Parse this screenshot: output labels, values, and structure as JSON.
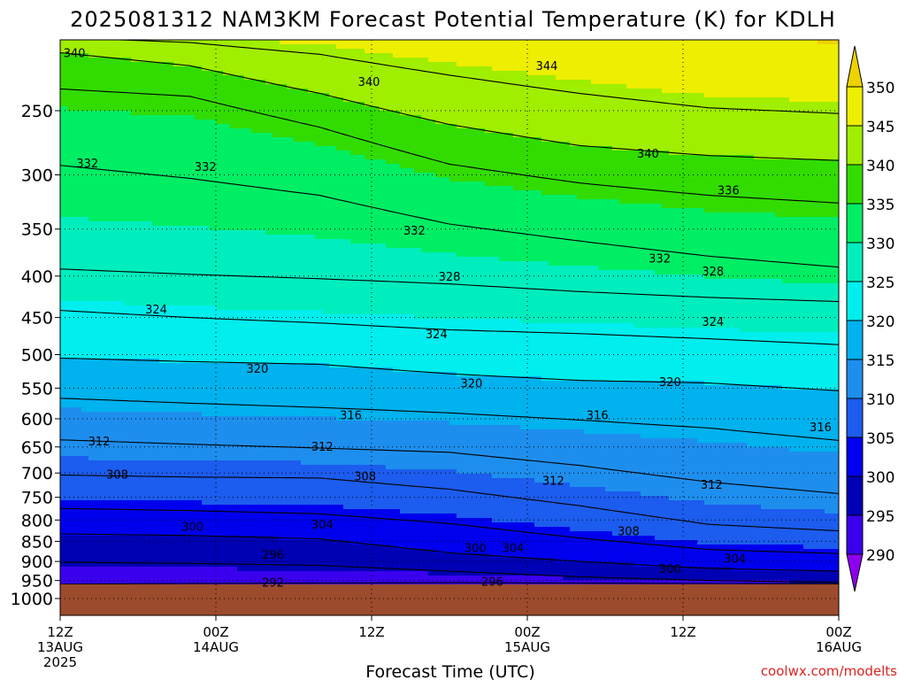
{
  "chart_data": {
    "type": "heatmap",
    "title": "2025081312 NAM3KM Forecast Potential Temperature (K) for KDLH",
    "xlabel": "Forecast Time (UTC)",
    "ylabel": "",
    "credit": "coolwx.com/modelts",
    "x_ticks": [
      {
        "hour": 0,
        "label": "12Z",
        "sub": "13AUG",
        "year": "2025"
      },
      {
        "hour": 12,
        "label": "00Z",
        "sub": "14AUG",
        "year": ""
      },
      {
        "hour": 24,
        "label": "12Z",
        "sub": "",
        "year": ""
      },
      {
        "hour": 36,
        "label": "00Z",
        "sub": "15AUG",
        "year": ""
      },
      {
        "hour": 48,
        "label": "12Z",
        "sub": "",
        "year": ""
      },
      {
        "hour": 60,
        "label": "00Z",
        "sub": "16AUG",
        "year": ""
      }
    ],
    "xlim_hours": [
      0,
      60
    ],
    "y_scale": "log-pressure (inverted)",
    "ylim_hPa": [
      1050,
      200
    ],
    "y_ticks": [
      250,
      300,
      350,
      400,
      450,
      500,
      550,
      600,
      650,
      700,
      750,
      800,
      850,
      900,
      950,
      1000
    ],
    "grid": "dotted at every tick",
    "ground_color": "#9c4b2c",
    "colorbar": {
      "position": "right",
      "levels": [
        290,
        295,
        300,
        305,
        310,
        315,
        320,
        325,
        330,
        335,
        340,
        345,
        350
      ],
      "colors": [
        "#8f00ee",
        "#3a00ee",
        "#0000b4",
        "#0000ee",
        "#1c5cee",
        "#1e8eee",
        "#00b2ee",
        "#00eeee",
        "#00eebe",
        "#00ee64",
        "#32dc00",
        "#a0ee00",
        "#eeee00",
        "#eed200"
      ]
    },
    "isentropes": [
      {
        "theta": 292,
        "pressure": [
          960,
          958,
          957,
          956,
          957,
          958,
          959
        ]
      },
      {
        "theta": 296,
        "pressure": [
          902,
          905,
          910,
          925,
          940,
          950,
          955
        ]
      },
      {
        "theta": 300,
        "pressure": [
          832,
          836,
          844,
          878,
          900,
          918,
          925
        ]
      },
      {
        "theta": 304,
        "pressure": [
          774,
          779,
          786,
          808,
          842,
          870,
          880
        ]
      },
      {
        "theta": 308,
        "pressure": [
          704,
          708,
          710,
          733,
          768,
          810,
          825
        ]
      },
      {
        "theta": 312,
        "pressure": [
          637,
          645,
          652,
          660,
          685,
          718,
          742
        ]
      },
      {
        "theta": 316,
        "pressure": [
          566,
          574,
          581,
          590,
          602,
          616,
          638
        ]
      },
      {
        "theta": 320,
        "pressure": [
          505,
          510,
          514,
          528,
          538,
          542,
          554
        ]
      },
      {
        "theta": 324,
        "pressure": [
          441,
          450,
          457,
          466,
          471,
          478,
          486
        ]
      },
      {
        "theta": 328,
        "pressure": [
          392,
          398,
          403,
          409,
          418,
          425,
          430
        ]
      },
      {
        "theta": 332,
        "pressure": [
          292,
          303,
          318,
          345,
          362,
          378,
          390
        ]
      },
      {
        "theta": 336,
        "pressure": [
          235,
          240,
          262,
          291,
          307,
          318,
          325
        ]
      },
      {
        "theta": 340,
        "pressure": [
          212,
          220,
          238,
          260,
          276,
          284,
          288
        ]
      },
      {
        "theta": 344,
        "pressure": [
          203,
          206,
          213,
          226,
          238,
          248,
          252
        ]
      }
    ],
    "isentrope_hours": [
      0,
      10,
      20,
      30,
      40,
      50,
      60
    ],
    "contour_labels": [
      {
        "text": "340",
        "hour": 1.1,
        "p": 212
      },
      {
        "text": "340",
        "hour": 23.8,
        "p": 230
      },
      {
        "text": "344",
        "hour": 37.5,
        "p": 220
      },
      {
        "text": "340",
        "hour": 45.3,
        "p": 282
      },
      {
        "text": "336",
        "hour": 51.5,
        "p": 313
      },
      {
        "text": "332",
        "hour": 2.1,
        "p": 290
      },
      {
        "text": "332",
        "hour": 11.2,
        "p": 293
      },
      {
        "text": "332",
        "hour": 27.3,
        "p": 351
      },
      {
        "text": "328",
        "hour": 30.0,
        "p": 400
      },
      {
        "text": "332",
        "hour": 46.2,
        "p": 380
      },
      {
        "text": "328",
        "hour": 50.3,
        "p": 394
      },
      {
        "text": "324",
        "hour": 7.4,
        "p": 439
      },
      {
        "text": "324",
        "hour": 29.0,
        "p": 471
      },
      {
        "text": "324",
        "hour": 50.3,
        "p": 455
      },
      {
        "text": "320",
        "hour": 15.2,
        "p": 520
      },
      {
        "text": "320",
        "hour": 31.7,
        "p": 542
      },
      {
        "text": "320",
        "hour": 47.0,
        "p": 540
      },
      {
        "text": "316",
        "hour": 22.4,
        "p": 593
      },
      {
        "text": "316",
        "hour": 41.4,
        "p": 593
      },
      {
        "text": "316",
        "hour": 58.6,
        "p": 614
      },
      {
        "text": "312",
        "hour": 3.0,
        "p": 639
      },
      {
        "text": "312",
        "hour": 20.2,
        "p": 649
      },
      {
        "text": "312",
        "hour": 38.0,
        "p": 715
      },
      {
        "text": "312",
        "hour": 50.2,
        "p": 723
      },
      {
        "text": "308",
        "hour": 4.4,
        "p": 702
      },
      {
        "text": "308",
        "hour": 23.5,
        "p": 706
      },
      {
        "text": "308",
        "hour": 43.8,
        "p": 825
      },
      {
        "text": "304",
        "hour": 20.2,
        "p": 810
      },
      {
        "text": "304",
        "hour": 34.9,
        "p": 865
      },
      {
        "text": "304",
        "hour": 52.0,
        "p": 892
      },
      {
        "text": "300",
        "hour": 10.2,
        "p": 815
      },
      {
        "text": "300",
        "hour": 32.0,
        "p": 865
      },
      {
        "text": "300",
        "hour": 47.0,
        "p": 918
      },
      {
        "text": "296",
        "hour": 16.4,
        "p": 882
      },
      {
        "text": "296",
        "hour": 33.3,
        "p": 952
      },
      {
        "text": "292",
        "hour": 16.4,
        "p": 955
      }
    ]
  }
}
